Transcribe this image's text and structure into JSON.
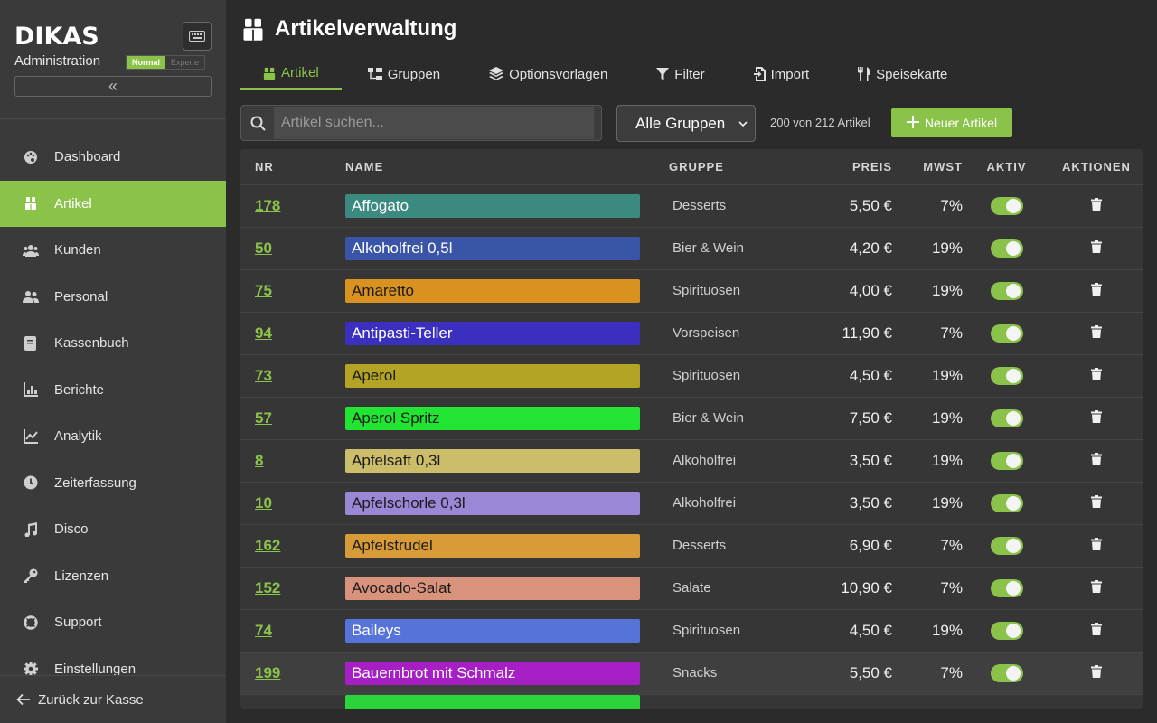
{
  "sidebar": {
    "brand": "DIKAS",
    "subtitle": "Administration",
    "mode_normal": "Normal",
    "mode_expert": "Experte",
    "collapse_symbol": "«",
    "nav": [
      {
        "label": "Dashboard",
        "icon": "palette-icon"
      },
      {
        "label": "Artikel",
        "icon": "boxes-icon",
        "active": true
      },
      {
        "label": "Kunden",
        "icon": "users-icon"
      },
      {
        "label": "Personal",
        "icon": "user-group-icon"
      },
      {
        "label": "Kassenbuch",
        "icon": "book-icon"
      },
      {
        "label": "Berichte",
        "icon": "bar-chart-icon"
      },
      {
        "label": "Analytik",
        "icon": "line-chart-icon"
      },
      {
        "label": "Zeiterfassung",
        "icon": "clock-icon"
      },
      {
        "label": "Disco",
        "icon": "music-icon"
      },
      {
        "label": "Lizenzen",
        "icon": "key-icon"
      },
      {
        "label": "Support",
        "icon": "lifebuoy-icon"
      },
      {
        "label": "Einstellungen",
        "icon": "gear-icon"
      }
    ],
    "back_label": "Zurück zur Kasse"
  },
  "header": {
    "title": "Artikelverwaltung"
  },
  "tabs": [
    {
      "label": "Artikel",
      "icon": "boxes-icon",
      "active": true
    },
    {
      "label": "Gruppen",
      "icon": "sitemap-icon"
    },
    {
      "label": "Optionsvorlagen",
      "icon": "layers-icon"
    },
    {
      "label": "Filter",
      "icon": "filter-icon"
    },
    {
      "label": "Import",
      "icon": "file-import-icon"
    },
    {
      "label": "Speisekarte",
      "icon": "utensils-icon"
    }
  ],
  "toolbar": {
    "search_placeholder": "Artikel suchen...",
    "group_select": "Alle Gruppen",
    "count": "200 von 212 Artikel",
    "new_button": "Neuer Artikel"
  },
  "table": {
    "headers": {
      "nr": "NR",
      "name": "NAME",
      "group": "GRUPPE",
      "price": "PREIS",
      "vat": "MWST",
      "active": "AKTIV",
      "actions": "AKTIONEN"
    },
    "rows": [
      {
        "nr": "178",
        "name": "Affogato",
        "group": "Desserts",
        "price": "5,50 €",
        "vat": "7%",
        "color": "#3a8a80",
        "text_color": "#ffffff",
        "active": true
      },
      {
        "nr": "50",
        "name": "Alkoholfrei 0,5l",
        "group": "Bier & Wein",
        "price": "4,20 €",
        "vat": "19%",
        "color": "#3a55a8",
        "text_color": "#ffffff",
        "active": true
      },
      {
        "nr": "75",
        "name": "Amaretto",
        "group": "Spirituosen",
        "price": "4,00 €",
        "vat": "19%",
        "color": "#d9921f",
        "text_color": "#1a1a1a",
        "active": true
      },
      {
        "nr": "94",
        "name": "Antipasti-Teller",
        "group": "Vorspeisen",
        "price": "11,90 €",
        "vat": "7%",
        "color": "#3b2fc0",
        "text_color": "#ffffff",
        "active": true
      },
      {
        "nr": "73",
        "name": "Aperol",
        "group": "Spirituosen",
        "price": "4,50 €",
        "vat": "19%",
        "color": "#b3a425",
        "text_color": "#1a1a1a",
        "active": true
      },
      {
        "nr": "57",
        "name": "Aperol Spritz",
        "group": "Bier & Wein",
        "price": "7,50 €",
        "vat": "19%",
        "color": "#22e532",
        "text_color": "#1a1a1a",
        "active": true
      },
      {
        "nr": "8",
        "name": "Apfelsaft 0,3l",
        "group": "Alkoholfrei",
        "price": "3,50 €",
        "vat": "19%",
        "color": "#cbbd6a",
        "text_color": "#1a1a1a",
        "active": true
      },
      {
        "nr": "10",
        "name": "Apfelschorle 0,3l",
        "group": "Alkoholfrei",
        "price": "3,50 €",
        "vat": "19%",
        "color": "#9a88d6",
        "text_color": "#1a1a1a",
        "active": true
      },
      {
        "nr": "162",
        "name": "Apfelstrudel",
        "group": "Desserts",
        "price": "6,90 €",
        "vat": "7%",
        "color": "#d99a38",
        "text_color": "#1a1a1a",
        "active": true
      },
      {
        "nr": "152",
        "name": "Avocado-Salat",
        "group": "Salate",
        "price": "10,90 €",
        "vat": "7%",
        "color": "#d9937c",
        "text_color": "#1a1a1a",
        "active": true
      },
      {
        "nr": "74",
        "name": "Baileys",
        "group": "Spirituosen",
        "price": "4,50 €",
        "vat": "19%",
        "color": "#5573d9",
        "text_color": "#ffffff",
        "active": true
      },
      {
        "nr": "199",
        "name": "Bauernbrot mit Schmalz",
        "group": "Snacks",
        "price": "5,50 €",
        "vat": "7%",
        "color": "#a51fc4",
        "text_color": "#ffffff",
        "active": true
      }
    ]
  },
  "colors": {
    "accent": "#8bc34a",
    "sidebar_bg": "#3a3a3a",
    "main_bg": "#2b2b2b"
  }
}
